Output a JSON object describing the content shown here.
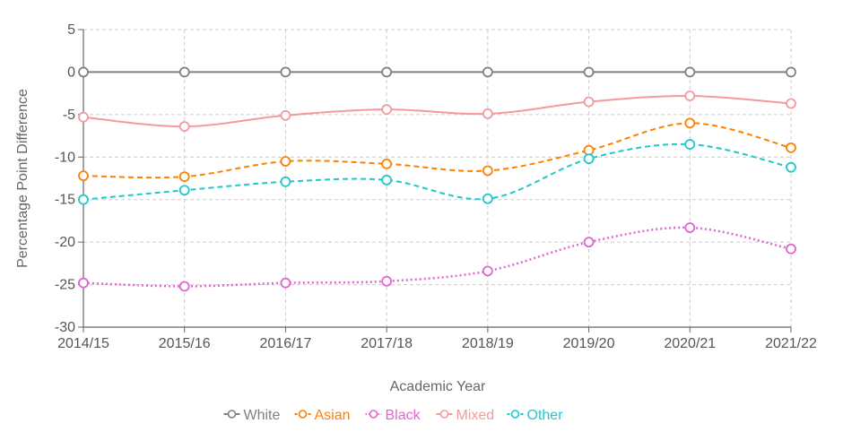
{
  "chart_data": {
    "type": "line",
    "title": "",
    "xlabel": "Academic Year",
    "ylabel": "Percentage Point Difference",
    "categories": [
      "2014/15",
      "2015/16",
      "2016/17",
      "2017/18",
      "2018/19",
      "2019/20",
      "2020/21",
      "2021/22"
    ],
    "ylim": [
      -30,
      5
    ],
    "yticks": [
      5,
      0,
      -5,
      -10,
      -15,
      -20,
      -25,
      -30
    ],
    "grid": true,
    "legend_position": "bottom",
    "series": [
      {
        "name": "White",
        "color": "#808080",
        "line_style": "solid",
        "smooth": false,
        "values": [
          0,
          0,
          0,
          0,
          0,
          0,
          0,
          0
        ]
      },
      {
        "name": "Asian",
        "color": "#ff8000",
        "line_style": "dashed",
        "smooth": true,
        "values": [
          -12.2,
          -12.3,
          -10.5,
          -10.8,
          -11.6,
          -9.2,
          -6.0,
          -8.9
        ]
      },
      {
        "name": "Black",
        "color": "#e066d0",
        "line_style": "dotted",
        "smooth": true,
        "values": [
          -24.8,
          -25.2,
          -24.8,
          -24.6,
          -23.4,
          -20.0,
          -18.3,
          -20.8
        ]
      },
      {
        "name": "Mixed",
        "color": "#f59a9a",
        "line_style": "solid",
        "smooth": true,
        "values": [
          -5.3,
          -6.4,
          -5.1,
          -4.4,
          -4.9,
          -3.5,
          -2.8,
          -3.7
        ]
      },
      {
        "name": "Other",
        "color": "#1ec8cd",
        "line_style": "dashed",
        "smooth": true,
        "values": [
          -15.0,
          -13.9,
          -12.9,
          -12.7,
          -14.9,
          -10.2,
          -8.5,
          -11.2
        ]
      }
    ]
  }
}
